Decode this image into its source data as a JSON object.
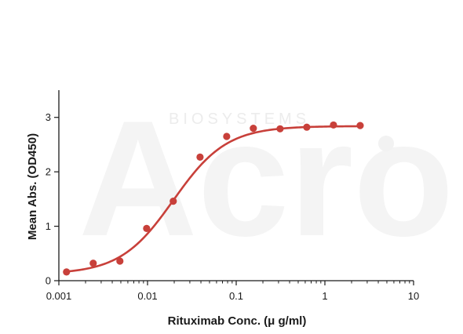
{
  "watermark": {
    "brand": "Acro",
    "line": "BIOSYSTEMS"
  },
  "chart_data": {
    "type": "scatter",
    "xlabel": "Rituximab Conc. (μ g/ml)",
    "ylabel": "Mean Abs. (OD450)",
    "xscale": "log",
    "xlim": [
      0.001,
      10
    ],
    "ylim": [
      0,
      3.5
    ],
    "xticks": [
      0.001,
      0.01,
      0.1,
      1,
      10
    ],
    "xtick_labels": [
      "0.001",
      "0.01",
      "0.1",
      "1",
      "10"
    ],
    "yticks": [
      0,
      1,
      2,
      3
    ],
    "ytick_labels": [
      "0",
      "1",
      "2",
      "3"
    ],
    "grid": false,
    "color": "#c8403a",
    "series": [
      {
        "x": [
          0.00122,
          0.00244,
          0.00488,
          0.00977,
          0.0195,
          0.0391,
          0.0781,
          0.156,
          0.3125,
          0.625,
          1.25,
          2.5
        ],
        "y": [
          0.16,
          0.32,
          0.36,
          0.96,
          1.46,
          2.27,
          2.65,
          2.8,
          2.79,
          2.82,
          2.86,
          2.85
        ]
      }
    ],
    "fit": {
      "bottom": 0.12,
      "top": 2.84,
      "ec50": 0.0196,
      "hill": 1.45
    }
  }
}
